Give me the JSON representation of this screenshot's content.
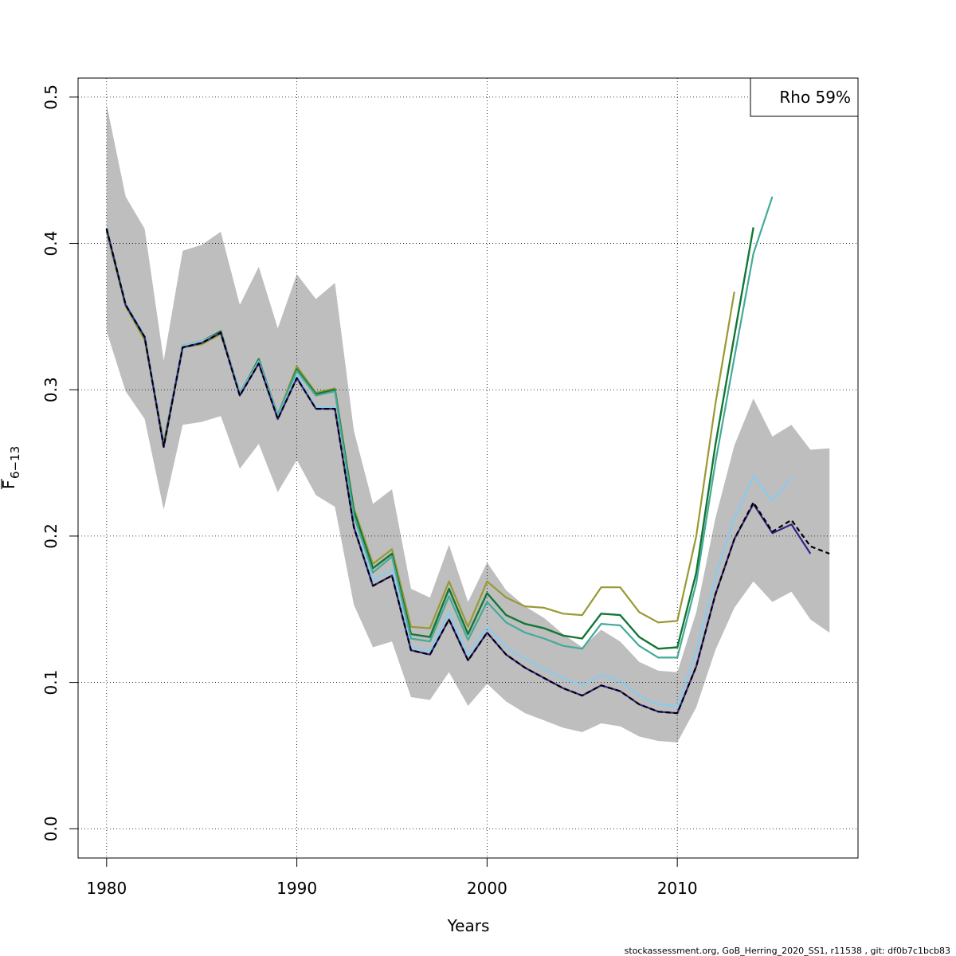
{
  "chart_data": {
    "type": "line",
    "xlabel": "Years",
    "ylabel_main": "F",
    "ylabel_sub": "6−13",
    "xlim": [
      1978.5,
      2019.5
    ],
    "ylim": [
      -0.02,
      0.513
    ],
    "xticks": [
      1980,
      1990,
      2000,
      2010
    ],
    "yticks": [
      0.0,
      0.1,
      0.2,
      0.3,
      0.4,
      0.5
    ],
    "ytick_labels": [
      "0.0",
      "0.1",
      "0.2",
      "0.3",
      "0.4",
      "0.5"
    ],
    "grid": true,
    "legend": {
      "position": "top-right",
      "text": "Rho 59%"
    },
    "footer": "stockassessment.org, GoB_Herring_2020_SS1, r11538 , git: df0b7c1bcb83",
    "band": {
      "color": "#bebebe",
      "x": [
        1980,
        1981,
        1982,
        1983,
        1984,
        1985,
        1986,
        1987,
        1988,
        1989,
        1990,
        1991,
        1992,
        1993,
        1994,
        1995,
        1996,
        1997,
        1998,
        1999,
        2000,
        2001,
        2002,
        2003,
        2004,
        2005,
        2006,
        2007,
        2008,
        2009,
        2010,
        2011,
        2012,
        2013,
        2014,
        2015,
        2016,
        2017,
        2018
      ],
      "upper": [
        0.495,
        0.432,
        0.41,
        0.32,
        0.395,
        0.399,
        0.408,
        0.358,
        0.384,
        0.342,
        0.379,
        0.362,
        0.373,
        0.272,
        0.222,
        0.232,
        0.164,
        0.158,
        0.194,
        0.155,
        0.182,
        0.163,
        0.152,
        0.144,
        0.133,
        0.124,
        0.136,
        0.128,
        0.114,
        0.108,
        0.107,
        0.148,
        0.212,
        0.262,
        0.294,
        0.268,
        0.276,
        0.259,
        0.26
      ],
      "lower": [
        0.34,
        0.299,
        0.28,
        0.218,
        0.276,
        0.278,
        0.282,
        0.246,
        0.263,
        0.23,
        0.252,
        0.228,
        0.22,
        0.153,
        0.124,
        0.128,
        0.09,
        0.088,
        0.107,
        0.084,
        0.099,
        0.087,
        0.079,
        0.074,
        0.069,
        0.066,
        0.072,
        0.07,
        0.063,
        0.06,
        0.059,
        0.083,
        0.122,
        0.151,
        0.169,
        0.155,
        0.162,
        0.143,
        0.134
      ]
    },
    "series": [
      {
        "color": "#999933",
        "width": 2.2,
        "dash": "",
        "x": [
          1980,
          1981,
          1982,
          1983,
          1984,
          1985,
          1986,
          1987,
          1988,
          1989,
          1990,
          1991,
          1992,
          1993,
          1994,
          1995,
          1996,
          1997,
          1998,
          1999,
          2000,
          2001,
          2002,
          2003,
          2004,
          2005,
          2006,
          2007,
          2008,
          2009,
          2010,
          2011,
          2012,
          2013
        ],
        "values": [
          0.408,
          0.357,
          0.334,
          0.264,
          0.329,
          0.331,
          0.338,
          0.298,
          0.318,
          0.283,
          0.316,
          0.298,
          0.301,
          0.219,
          0.181,
          0.191,
          0.138,
          0.137,
          0.169,
          0.138,
          0.169,
          0.158,
          0.152,
          0.151,
          0.147,
          0.146,
          0.165,
          0.165,
          0.148,
          0.141,
          0.142,
          0.2,
          0.29,
          0.367
        ]
      },
      {
        "color": "#117733",
        "width": 2.4,
        "dash": "",
        "x": [
          1980,
          1981,
          1982,
          1983,
          1984,
          1985,
          1986,
          1987,
          1988,
          1989,
          1990,
          1991,
          1992,
          1993,
          1994,
          1995,
          1996,
          1997,
          1998,
          1999,
          2000,
          2001,
          2002,
          2003,
          2004,
          2005,
          2006,
          2007,
          2008,
          2009,
          2010,
          2011,
          2012,
          2013,
          2014
        ],
        "values": [
          0.41,
          0.358,
          0.336,
          0.262,
          0.33,
          0.333,
          0.34,
          0.297,
          0.321,
          0.282,
          0.314,
          0.297,
          0.3,
          0.217,
          0.178,
          0.188,
          0.133,
          0.131,
          0.164,
          0.133,
          0.161,
          0.146,
          0.14,
          0.137,
          0.132,
          0.13,
          0.147,
          0.146,
          0.131,
          0.123,
          0.124,
          0.175,
          0.262,
          0.337,
          0.411
        ]
      },
      {
        "color": "#44AA99",
        "width": 2.2,
        "dash": "",
        "x": [
          1980,
          1981,
          1982,
          1983,
          1984,
          1985,
          1986,
          1987,
          1988,
          1989,
          1990,
          1991,
          1992,
          1993,
          1994,
          1995,
          1996,
          1997,
          1998,
          1999,
          2000,
          2001,
          2002,
          2003,
          2004,
          2005,
          2006,
          2007,
          2008,
          2009,
          2010,
          2011,
          2012,
          2013,
          2014,
          2015
        ],
        "values": [
          0.409,
          0.359,
          0.337,
          0.262,
          0.33,
          0.333,
          0.339,
          0.298,
          0.32,
          0.283,
          0.313,
          0.296,
          0.299,
          0.214,
          0.175,
          0.186,
          0.13,
          0.128,
          0.159,
          0.129,
          0.155,
          0.141,
          0.134,
          0.13,
          0.125,
          0.123,
          0.14,
          0.139,
          0.125,
          0.117,
          0.117,
          0.168,
          0.25,
          0.322,
          0.393,
          0.432
        ]
      },
      {
        "color": "#88CCEE",
        "width": 2.2,
        "dash": "",
        "x": [
          1980,
          1981,
          1982,
          1983,
          1984,
          1985,
          1986,
          1987,
          1988,
          1989,
          1990,
          1991,
          1992,
          1993,
          1994,
          1995,
          1996,
          1997,
          1998,
          1999,
          2000,
          2001,
          2002,
          2003,
          2004,
          2005,
          2006,
          2007,
          2008,
          2009,
          2010,
          2011,
          2012,
          2013,
          2014,
          2015,
          2016
        ],
        "values": [
          0.41,
          0.359,
          0.337,
          0.261,
          0.33,
          0.333,
          0.339,
          0.297,
          0.319,
          0.281,
          0.31,
          0.288,
          0.288,
          0.207,
          0.17,
          0.177,
          0.124,
          0.121,
          0.148,
          0.119,
          0.138,
          0.124,
          0.116,
          0.109,
          0.103,
          0.098,
          0.105,
          0.101,
          0.091,
          0.085,
          0.084,
          0.121,
          0.172,
          0.212,
          0.241,
          0.224,
          0.24
        ]
      },
      {
        "color": "#332288",
        "width": 2.2,
        "dash": "",
        "x": [
          1980,
          1981,
          1982,
          1983,
          1984,
          1985,
          1986,
          1987,
          1988,
          1989,
          1990,
          1991,
          1992,
          1993,
          1994,
          1995,
          1996,
          1997,
          1998,
          1999,
          2000,
          2001,
          2002,
          2003,
          2004,
          2005,
          2006,
          2007,
          2008,
          2009,
          2010,
          2011,
          2012,
          2013,
          2014,
          2015,
          2016,
          2017
        ],
        "values": [
          0.41,
          0.358,
          0.336,
          0.261,
          0.329,
          0.332,
          0.339,
          0.296,
          0.318,
          0.28,
          0.308,
          0.287,
          0.287,
          0.206,
          0.166,
          0.173,
          0.122,
          0.119,
          0.143,
          0.115,
          0.134,
          0.119,
          0.11,
          0.103,
          0.096,
          0.091,
          0.098,
          0.094,
          0.085,
          0.08,
          0.079,
          0.111,
          0.16,
          0.198,
          0.222,
          0.202,
          0.208,
          0.188
        ]
      },
      {
        "color": "#000000",
        "width": 2.2,
        "dash": "6,4",
        "x": [
          1980,
          1981,
          1982,
          1983,
          1984,
          1985,
          1986,
          1987,
          1988,
          1989,
          1990,
          1991,
          1992,
          1993,
          1994,
          1995,
          1996,
          1997,
          1998,
          1999,
          2000,
          2001,
          2002,
          2003,
          2004,
          2005,
          2006,
          2007,
          2008,
          2009,
          2010,
          2011,
          2012,
          2013,
          2014,
          2015,
          2016,
          2017,
          2018
        ],
        "values": [
          0.41,
          0.358,
          0.336,
          0.261,
          0.329,
          0.332,
          0.339,
          0.296,
          0.318,
          0.28,
          0.308,
          0.287,
          0.287,
          0.206,
          0.166,
          0.173,
          0.122,
          0.119,
          0.143,
          0.115,
          0.134,
          0.119,
          0.11,
          0.103,
          0.096,
          0.091,
          0.098,
          0.094,
          0.085,
          0.08,
          0.079,
          0.111,
          0.16,
          0.198,
          0.223,
          0.203,
          0.211,
          0.193,
          0.188
        ]
      }
    ]
  }
}
